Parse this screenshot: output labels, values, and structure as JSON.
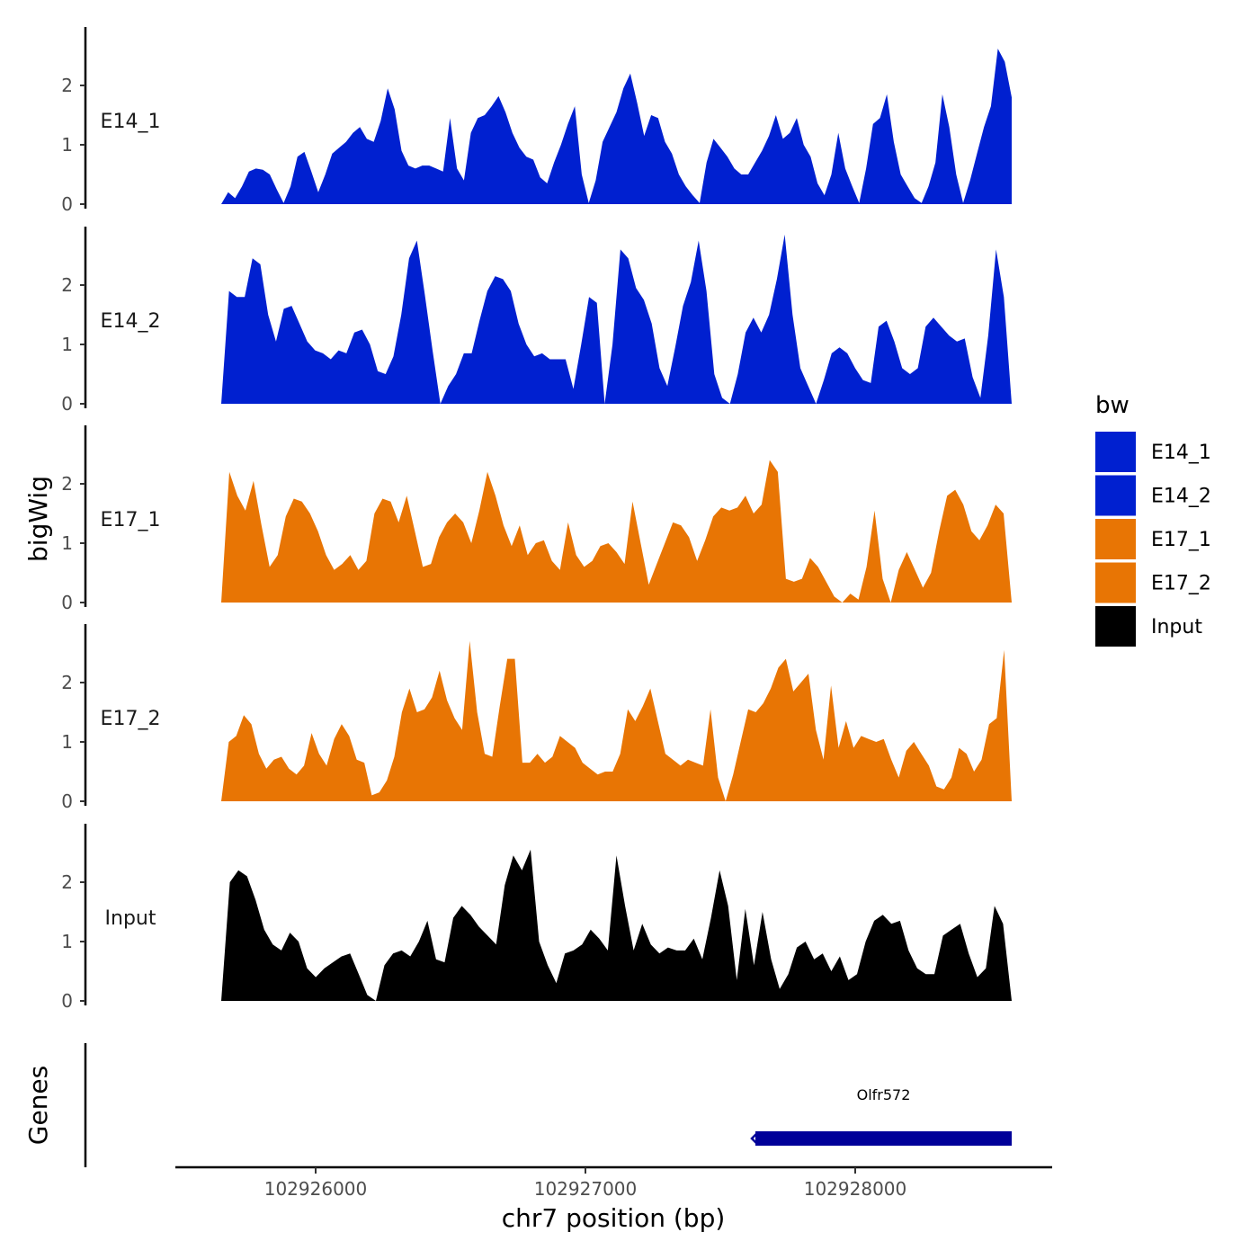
{
  "chart_data": {
    "type": "area",
    "chromosome": "chr7",
    "xlabel": "chr7 position (bp)",
    "ylabel": "bigWig",
    "xlim": [
      102925480,
      102928730
    ],
    "xticks": [
      102926000,
      102927000,
      102928000
    ],
    "xtick_labels": [
      "102926000",
      "102927000",
      "102928000"
    ],
    "ylim": [
      0,
      3.0
    ],
    "yticks": [
      0,
      1,
      2
    ],
    "ytick_labels": [
      "0",
      "1",
      "2"
    ],
    "x_start": 102925650,
    "x_end": 102928580,
    "legend": {
      "title": "bw",
      "position": "right",
      "entries": [
        {
          "label": "E14_1",
          "color": "#0020D0"
        },
        {
          "label": "E14_2",
          "color": "#0020D0"
        },
        {
          "label": "E17_1",
          "color": "#E87504"
        },
        {
          "label": "E17_2",
          "color": "#E87504"
        },
        {
          "label": "Input",
          "color": "#000000"
        }
      ]
    },
    "series": [
      {
        "name": "E14_1",
        "color": "#0020D0",
        "values": [
          0.0,
          0.2,
          0.1,
          0.3,
          0.55,
          0.6,
          0.58,
          0.5,
          0.25,
          0.02,
          0.3,
          0.8,
          0.88,
          0.55,
          0.2,
          0.5,
          0.85,
          0.95,
          1.05,
          1.2,
          1.3,
          1.1,
          1.05,
          1.4,
          1.95,
          1.6,
          0.9,
          0.65,
          0.6,
          0.65,
          0.65,
          0.6,
          0.55,
          1.45,
          0.6,
          0.4,
          1.2,
          1.45,
          1.5,
          1.65,
          1.82,
          1.55,
          1.2,
          0.95,
          0.8,
          0.75,
          0.45,
          0.35,
          0.7,
          1.0,
          1.35,
          1.65,
          0.5,
          0.02,
          0.4,
          1.05,
          1.3,
          1.55,
          1.95,
          2.2,
          1.7,
          1.15,
          1.5,
          1.45,
          1.05,
          0.85,
          0.5,
          0.3,
          0.15,
          0.02,
          0.7,
          1.1,
          0.95,
          0.8,
          0.6,
          0.5,
          0.5,
          0.7,
          0.9,
          1.15,
          1.5,
          1.1,
          1.2,
          1.45,
          1.0,
          0.8,
          0.35,
          0.15,
          0.5,
          1.2,
          0.6,
          0.3,
          0.02,
          0.6,
          1.35,
          1.45,
          1.85,
          1.05,
          0.5,
          0.3,
          0.1,
          0.02,
          0.3,
          0.7,
          1.85,
          1.3,
          0.5,
          0.02,
          0.4,
          0.85,
          1.3,
          1.65,
          2.62,
          2.4,
          1.8
        ]
      },
      {
        "name": "E14_2",
        "color": "#0020D0",
        "values": [
          0.0,
          1.9,
          1.8,
          1.8,
          2.45,
          2.35,
          1.5,
          1.05,
          1.6,
          1.65,
          1.35,
          1.05,
          0.9,
          0.85,
          0.75,
          0.9,
          0.85,
          1.2,
          1.25,
          1.0,
          0.55,
          0.5,
          0.8,
          1.5,
          2.45,
          2.75,
          1.85,
          0.9,
          0.0,
          0.3,
          0.5,
          0.85,
          0.85,
          1.4,
          1.9,
          2.15,
          2.1,
          1.9,
          1.35,
          1.0,
          0.8,
          0.85,
          0.75,
          0.75,
          0.75,
          0.25,
          1.0,
          1.8,
          1.7,
          0.0,
          1.0,
          2.6,
          2.45,
          1.95,
          1.75,
          1.35,
          0.6,
          0.3,
          0.95,
          1.65,
          2.05,
          2.75,
          1.9,
          0.5,
          0.1,
          0.0,
          0.5,
          1.2,
          1.45,
          1.2,
          1.5,
          2.1,
          2.85,
          1.5,
          0.6,
          0.3,
          0.0,
          0.4,
          0.85,
          0.95,
          0.85,
          0.6,
          0.4,
          0.35,
          1.3,
          1.4,
          1.05,
          0.6,
          0.5,
          0.6,
          1.3,
          1.45,
          1.3,
          1.15,
          1.05,
          1.1,
          0.45,
          0.1,
          1.15,
          2.6,
          1.8,
          0.0
        ]
      },
      {
        "name": "E17_1",
        "color": "#E87504",
        "values": [
          0.0,
          2.2,
          1.8,
          1.55,
          2.05,
          1.3,
          0.6,
          0.8,
          1.45,
          1.75,
          1.7,
          1.5,
          1.2,
          0.8,
          0.55,
          0.65,
          0.8,
          0.55,
          0.7,
          1.5,
          1.75,
          1.7,
          1.35,
          1.8,
          1.2,
          0.6,
          0.65,
          1.1,
          1.35,
          1.5,
          1.35,
          1.0,
          1.55,
          2.2,
          1.8,
          1.3,
          0.95,
          1.3,
          0.8,
          1.0,
          1.05,
          0.7,
          0.55,
          1.35,
          0.8,
          0.6,
          0.7,
          0.95,
          1.0,
          0.85,
          0.65,
          1.7,
          1.0,
          0.3,
          0.65,
          1.0,
          1.35,
          1.3,
          1.1,
          0.7,
          1.05,
          1.45,
          1.6,
          1.55,
          1.6,
          1.8,
          1.5,
          1.65,
          2.4,
          2.2,
          0.4,
          0.35,
          0.4,
          0.75,
          0.6,
          0.35,
          0.1,
          0.0,
          0.15,
          0.05,
          0.6,
          1.55,
          0.4,
          0.0,
          0.55,
          0.85,
          0.55,
          0.25,
          0.5,
          1.2,
          1.8,
          1.9,
          1.65,
          1.2,
          1.05,
          1.3,
          1.65,
          1.5,
          0.0
        ]
      },
      {
        "name": "E17_2",
        "color": "#E87504",
        "values": [
          0.0,
          1.0,
          1.1,
          1.45,
          1.3,
          0.8,
          0.55,
          0.7,
          0.75,
          0.55,
          0.45,
          0.6,
          1.15,
          0.8,
          0.6,
          1.05,
          1.3,
          1.1,
          0.7,
          0.65,
          0.1,
          0.15,
          0.35,
          0.75,
          1.5,
          1.9,
          1.5,
          1.55,
          1.75,
          2.2,
          1.7,
          1.4,
          1.2,
          2.7,
          1.5,
          0.8,
          0.75,
          1.6,
          2.4,
          2.4,
          0.65,
          0.65,
          0.8,
          0.65,
          0.75,
          1.1,
          1.0,
          0.9,
          0.65,
          0.55,
          0.45,
          0.5,
          0.5,
          0.8,
          1.55,
          1.35,
          1.6,
          1.9,
          1.35,
          0.8,
          0.7,
          0.6,
          0.7,
          0.65,
          0.6,
          1.55,
          0.4,
          0.0,
          0.45,
          1.0,
          1.55,
          1.5,
          1.65,
          1.9,
          2.25,
          2.4,
          1.85,
          2.0,
          2.15,
          1.2,
          0.7,
          1.95,
          0.9,
          1.35,
          0.9,
          1.1,
          1.05,
          1.0,
          1.05,
          0.7,
          0.4,
          0.85,
          1.0,
          0.8,
          0.6,
          0.25,
          0.2,
          0.4,
          0.9,
          0.8,
          0.5,
          0.7,
          1.3,
          1.4,
          2.55,
          0.0
        ]
      },
      {
        "name": "Input",
        "color": "#000000",
        "values": [
          0.0,
          2.0,
          2.2,
          2.1,
          1.7,
          1.2,
          0.95,
          0.85,
          1.15,
          1.0,
          0.55,
          0.4,
          0.55,
          0.65,
          0.75,
          0.8,
          0.45,
          0.1,
          0.0,
          0.6,
          0.8,
          0.85,
          0.75,
          1.0,
          1.35,
          0.7,
          0.65,
          1.4,
          1.6,
          1.45,
          1.25,
          1.1,
          0.95,
          1.95,
          2.45,
          2.2,
          2.55,
          1.0,
          0.6,
          0.3,
          0.8,
          0.85,
          0.95,
          1.2,
          1.05,
          0.85,
          2.45,
          1.6,
          0.85,
          1.3,
          0.95,
          0.8,
          0.9,
          0.85,
          0.85,
          1.05,
          0.7,
          1.4,
          2.2,
          1.6,
          0.35,
          1.55,
          0.6,
          1.5,
          0.7,
          0.2,
          0.45,
          0.9,
          1.0,
          0.7,
          0.8,
          0.5,
          0.75,
          0.35,
          0.45,
          1.0,
          1.35,
          1.45,
          1.3,
          1.35,
          0.85,
          0.55,
          0.45,
          0.45,
          1.1,
          1.2,
          1.3,
          0.8,
          0.4,
          0.55,
          1.6,
          1.3,
          0.0
        ]
      }
    ],
    "genes": {
      "track_label": "Genes",
      "items": [
        {
          "name": "Olfr572",
          "start": 102927630,
          "end": 102928580,
          "strand": "-",
          "color": "#000099"
        }
      ]
    }
  }
}
